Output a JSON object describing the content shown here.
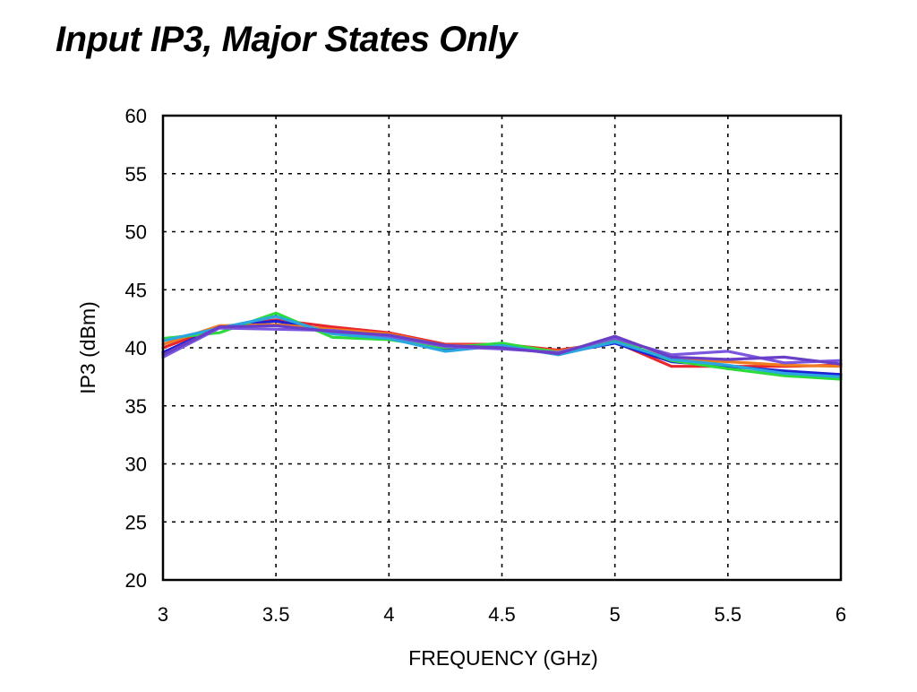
{
  "chart_data": {
    "type": "line",
    "title": "Input IP3, Major States Only",
    "xlabel": "FREQUENCY (GHz)",
    "ylabel": "IP3  (dBm)",
    "xlim": [
      3,
      6
    ],
    "ylim": [
      20,
      60
    ],
    "xticks": [
      "3",
      "3.5",
      "4",
      "4.5",
      "5",
      "5.5",
      "6"
    ],
    "yticks": [
      "20",
      "25",
      "30",
      "35",
      "40",
      "45",
      "50",
      "55",
      "60"
    ],
    "grid": true,
    "x": [
      3,
      3.25,
      3.5,
      3.75,
      4,
      4.25,
      4.5,
      4.75,
      5,
      5.25,
      5.5,
      5.75,
      6
    ],
    "series": [
      {
        "color": "#e8262b",
        "values": [
          40.0,
          41.8,
          42.4,
          41.8,
          41.3,
          40.3,
          40.3,
          39.8,
          40.5,
          38.4,
          38.4,
          38.4,
          38.5
        ]
      },
      {
        "color": "#1f1fd6",
        "values": [
          39.6,
          41.8,
          42.3,
          41.4,
          41.0,
          39.9,
          40.1,
          39.5,
          40.4,
          38.8,
          38.4,
          38.0,
          37.7
        ]
      },
      {
        "color": "#f07a1e",
        "values": [
          40.3,
          41.9,
          42.0,
          41.6,
          41.2,
          40.2,
          40.2,
          39.7,
          40.6,
          39.0,
          38.8,
          38.5,
          38.4
        ]
      },
      {
        "color": "#2ddc3c",
        "values": [
          40.8,
          41.3,
          43.0,
          40.9,
          40.7,
          40.0,
          40.4,
          39.6,
          40.7,
          38.9,
          38.2,
          37.6,
          37.3
        ]
      },
      {
        "color": "#2aa6e0",
        "values": [
          40.6,
          41.7,
          42.7,
          41.2,
          40.8,
          39.7,
          40.2,
          39.4,
          40.5,
          39.0,
          38.5,
          37.8,
          37.5
        ]
      },
      {
        "color": "#7b57e0",
        "values": [
          39.2,
          41.7,
          41.6,
          41.5,
          41.0,
          40.1,
          39.9,
          39.6,
          40.8,
          39.4,
          39.7,
          38.7,
          38.9
        ]
      },
      {
        "color": "#6a3fc8",
        "values": [
          39.4,
          41.8,
          41.9,
          41.4,
          41.1,
          40.2,
          40.0,
          39.5,
          41.0,
          39.2,
          39.0,
          39.2,
          38.6
        ]
      }
    ]
  }
}
